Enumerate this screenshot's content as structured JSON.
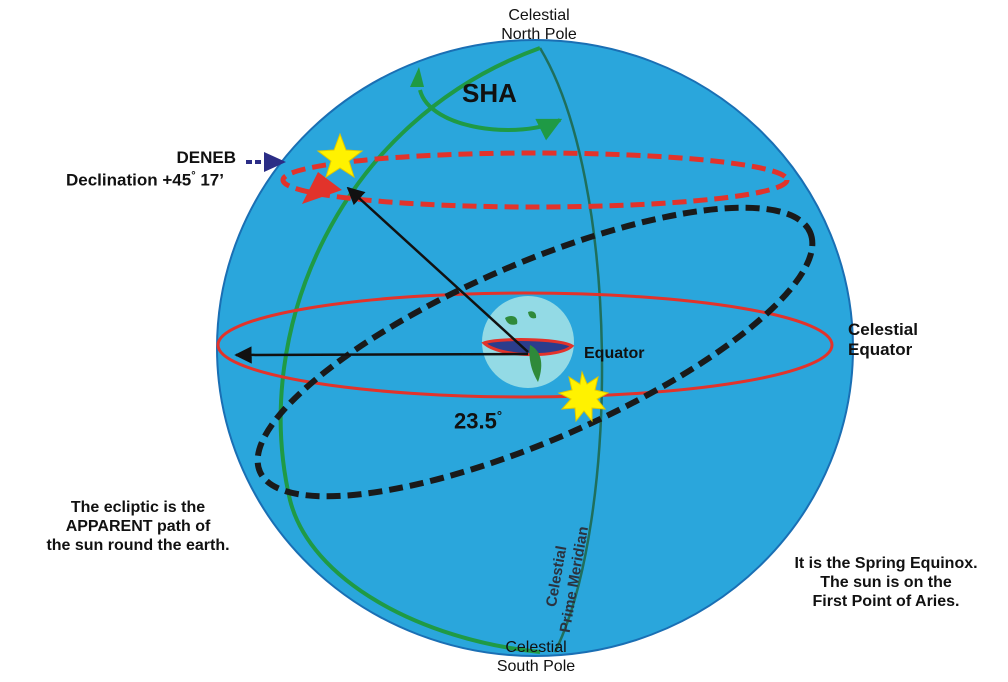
{
  "labels": {
    "north_pole": "Celestial\nNorth Pole",
    "south_pole": "Celestial\nSouth Pole",
    "sha": "SHA",
    "deneb": "DENEB",
    "declination": "Declination +45",
    "declination_deg": "°",
    "declination_min": "17’",
    "celestial_equator": "Celestial\nEquator",
    "earth_equator": "Equator",
    "obliquity": "23.5",
    "obliquity_deg": "°",
    "prime_meridian": "Celestial\nPrime Meridian",
    "ecliptic_note": "The ecliptic is the\nAPPARENT path of\nthe sun round the earth.",
    "equinox_note": "It is the Spring Equinox.\nThe sun is on the\nFirst Point of Aries."
  },
  "colors": {
    "sphere": "#2aa6dc",
    "sphere_edge": "#1a6fb4",
    "meridian_green": "#1f9a45",
    "equator_red": "#e2332b",
    "ecliptic_dash": "#1a1a1a",
    "declination_circle": "#e2332b",
    "deneb_arrow": "#2b2d86",
    "star": "#fff200",
    "earth": "#a6e3e6"
  }
}
